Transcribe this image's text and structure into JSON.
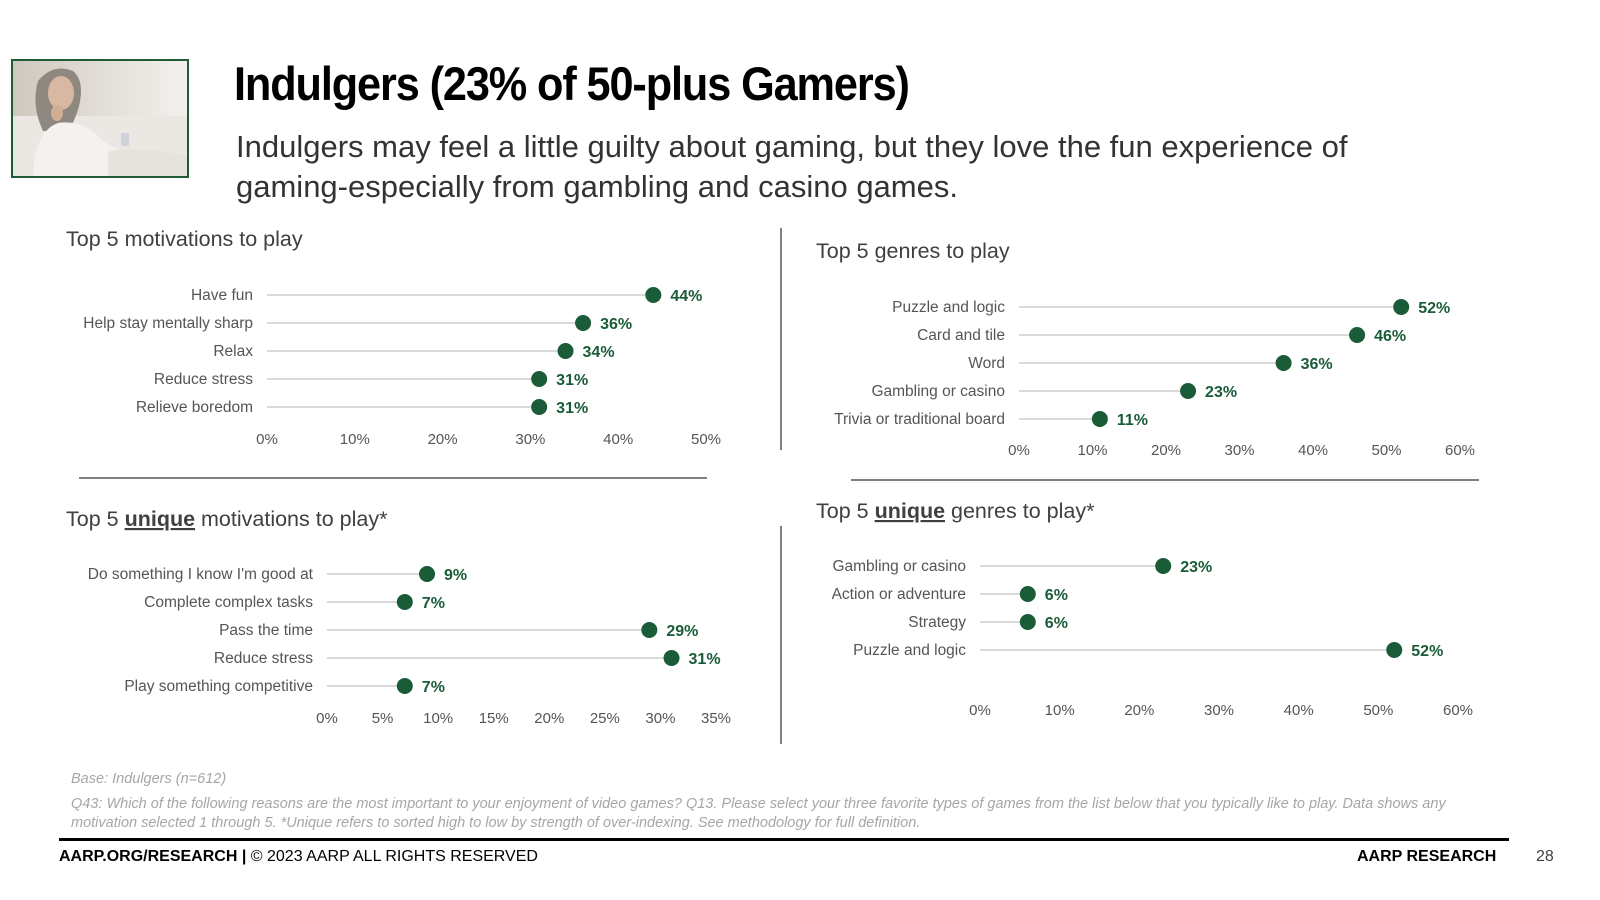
{
  "header": {
    "title": "Indulgers (23% of 50-plus Gamers)",
    "subtitle": "Indulgers may feel a little guilty about gaming, but they love the fun experience of gaming-especially from gambling and casino games."
  },
  "colors": {
    "dot": "#1a5c38",
    "line": "#d9d9d9",
    "divider": "#808080"
  },
  "chart_data": [
    {
      "type": "scatter",
      "title": "Top 5 motivations to play",
      "categories": [
        "Have fun",
        "Help stay mentally sharp",
        "Relax",
        "Reduce stress",
        "Relieve boredom"
      ],
      "values": [
        44,
        36,
        34,
        31,
        31
      ],
      "labels": [
        "44%",
        "36%",
        "34%",
        "31%",
        "31%"
      ],
      "xticks": [
        "0%",
        "10%",
        "20%",
        "30%",
        "40%",
        "50%"
      ],
      "xlim": [
        0,
        50
      ],
      "grid": false,
      "legend": "none"
    },
    {
      "type": "scatter",
      "title": "Top 5 genres to play",
      "categories": [
        "Puzzle and logic",
        "Card and tile",
        "Word",
        "Gambling or casino",
        "Trivia or traditional board"
      ],
      "values": [
        52,
        46,
        36,
        23,
        11
      ],
      "labels": [
        "52%",
        "46%",
        "36%",
        "23%",
        "11%"
      ],
      "xticks": [
        "0%",
        "10%",
        "20%",
        "30%",
        "40%",
        "50%",
        "60%"
      ],
      "xlim": [
        0,
        60
      ],
      "grid": false,
      "legend": "none"
    },
    {
      "type": "scatter",
      "title_parts": [
        "Top 5 ",
        "unique",
        " motivations to play*"
      ],
      "categories": [
        "Do something I know I'm good at",
        "Complete complex tasks",
        "Pass the time",
        "Reduce stress",
        "Play something competitive"
      ],
      "values": [
        9,
        7,
        29,
        31,
        7
      ],
      "labels": [
        "9%",
        "7%",
        "29%",
        "31%",
        "7%"
      ],
      "xticks": [
        "0%",
        "5%",
        "10%",
        "15%",
        "20%",
        "25%",
        "30%",
        "35%"
      ],
      "xlim": [
        0,
        35
      ],
      "grid": false,
      "legend": "none"
    },
    {
      "type": "scatter",
      "title_parts": [
        "Top 5 ",
        "unique",
        " genres to play*"
      ],
      "categories": [
        "Gambling or casino",
        "Action or adventure",
        "Strategy",
        "Puzzle and logic"
      ],
      "values": [
        23,
        6,
        6,
        52
      ],
      "labels": [
        "23%",
        "6%",
        "6%",
        "52%"
      ],
      "xticks": [
        "0%",
        "10%",
        "20%",
        "30%",
        "40%",
        "50%",
        "60%"
      ],
      "xlim": [
        0,
        60
      ],
      "grid": false,
      "legend": "none"
    }
  ],
  "notes": {
    "base": "Base: Indulgers (n=612)",
    "question": "Q43: Which of the following reasons are the most important to your enjoyment of video games?  Q13. Please select your three favorite types of games from the list below that you typically like to play. Data shows any motivation selected 1 through 5. *Unique refers to sorted high to low by strength of over-indexing. See methodology for full definition."
  },
  "footer": {
    "left_bold": "AARP.ORG/RESEARCH |",
    "left_rest": " © 2023 AARP ALL RIGHTS RESERVED",
    "right": "AARP RESEARCH",
    "page": "28"
  }
}
